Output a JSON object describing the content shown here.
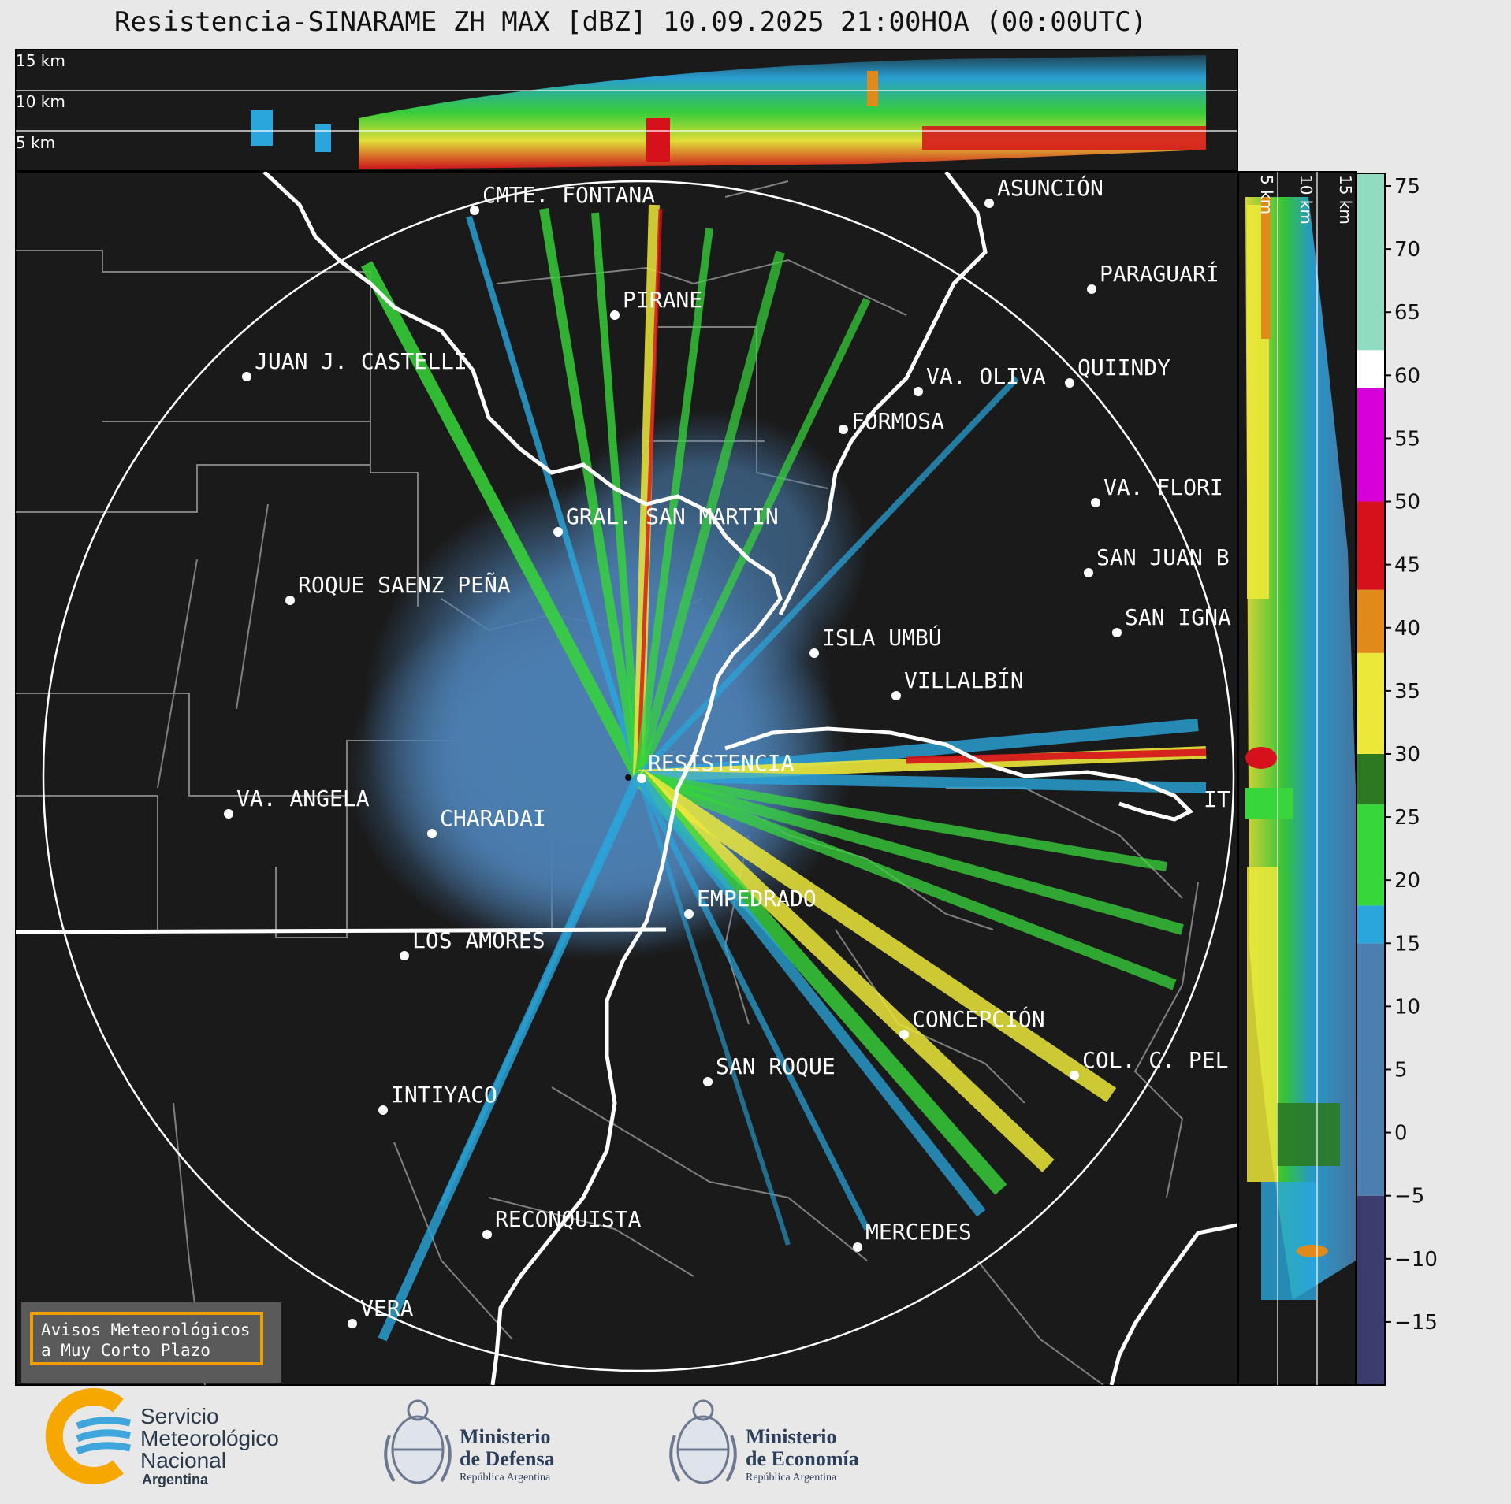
{
  "title": "Resistencia-SINARAME ZH MAX [dBZ] 10.09.2025 21:00HOA (00:00UTC)",
  "altitude_labels": [
    "15 km",
    "10 km",
    "5 km"
  ],
  "cities": [
    {
      "name": "CMTE. FONTANA"
    },
    {
      "name": "ASUNCIÓN"
    },
    {
      "name": "PARAGUARÍ"
    },
    {
      "name": "PIRANE"
    },
    {
      "name": "JUAN J. CASTELLI"
    },
    {
      "name": "VA. OLIVA"
    },
    {
      "name": "QUIINDY"
    },
    {
      "name": "FORMOSA"
    },
    {
      "name": "VA. FLORI"
    },
    {
      "name": "GRAL. SAN MARTIN"
    },
    {
      "name": "SAN JUAN B"
    },
    {
      "name": "ROQUE SAENZ PEÑA"
    },
    {
      "name": "SAN IGNA"
    },
    {
      "name": "ISLA UMBÚ"
    },
    {
      "name": "VILLALBÍN"
    },
    {
      "name": "RESISTENCIA"
    },
    {
      "name": "VA. ANGELA"
    },
    {
      "name": "CHARADAI"
    },
    {
      "name": "IT"
    },
    {
      "name": "EMPEDRADO"
    },
    {
      "name": "LOS AMORES"
    },
    {
      "name": "CONCEPCIÓN"
    },
    {
      "name": "COL. C. PEL"
    },
    {
      "name": "SAN ROQUE"
    },
    {
      "name": "INTIYACO"
    },
    {
      "name": "RECONQUISTA"
    },
    {
      "name": "MERCEDES"
    },
    {
      "name": "VERA"
    }
  ],
  "colorbar": {
    "unit": "dBZ",
    "ticks": [
      "75",
      "70",
      "65",
      "60",
      "55",
      "50",
      "45",
      "40",
      "35",
      "30",
      "25",
      "20",
      "15",
      "10",
      "5",
      "0",
      "−5",
      "−10",
      "−15"
    ],
    "range": [
      -20,
      76
    ],
    "colors": {
      "purple_low": "#3a3d6e",
      "blue": "#4a7fb0",
      "cyan": "#2aa6dc",
      "green": "#37d63a",
      "dark_green": "#2b7a22",
      "yellow": "#ece83a",
      "orange": "#e08a1c",
      "red": "#d6111c",
      "magenta": "#d800d8",
      "white": "#ffffff",
      "mint": "#8fdcc0"
    }
  },
  "avisos": {
    "line1": "Avisos Meteorológicos",
    "line2": "a Muy Corto Plazo"
  },
  "footer": {
    "smn_line1": "Servicio",
    "smn_line2": "Meteorológico",
    "smn_line3": "Nacional",
    "smn_line4": "Argentina",
    "defensa_line1": "Ministerio",
    "defensa_line2": "de Defensa",
    "defensa_line3": "República Argentina",
    "economia_line1": "Ministerio",
    "economia_line2": "de Economía",
    "economia_line3": "República Argentina"
  },
  "icons": [
    "smn-logo-icon",
    "argentina-coat-of-arms-icon"
  ]
}
